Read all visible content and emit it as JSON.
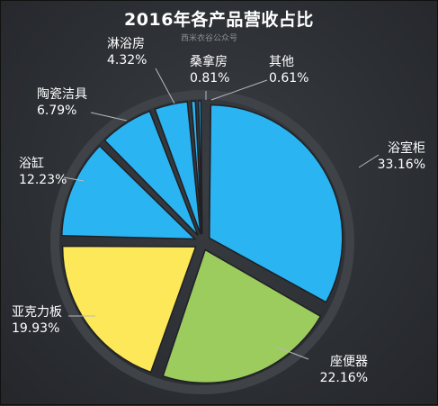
{
  "chart_data": {
    "type": "pie",
    "title": "2016年各产品营收占比",
    "watermark": "西米衣谷公众号",
    "slices": [
      {
        "label": "浴室柜",
        "value": 33.16,
        "display": "33.16%",
        "color": "#2ab4f2"
      },
      {
        "label": "座便器",
        "value": 22.16,
        "display": "22.16%",
        "color": "#9ccb5e"
      },
      {
        "label": "亚克力板",
        "value": 19.93,
        "display": "19.93%",
        "color": "#fde85a"
      },
      {
        "label": "浴缸",
        "value": 12.23,
        "display": "12.23%",
        "color": "#2ab4f2"
      },
      {
        "label": "陶瓷洁具",
        "value": 6.79,
        "display": "6.79%",
        "color": "#2ab4f2"
      },
      {
        "label": "淋浴房",
        "value": 4.32,
        "display": "4.32%",
        "color": "#2ab4f2"
      },
      {
        "label": "桑拿房",
        "value": 0.81,
        "display": "0.81%",
        "color": "#2ab4f2"
      },
      {
        "label": "其他",
        "value": 0.61,
        "display": "0.61%",
        "color": "#2ab4f2"
      }
    ]
  }
}
